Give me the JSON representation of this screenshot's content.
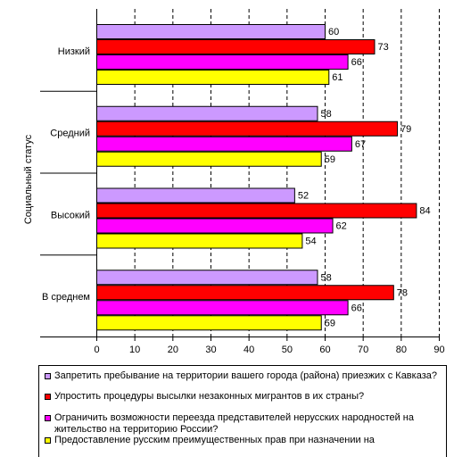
{
  "chart_data": {
    "type": "bar",
    "orientation": "horizontal",
    "ylabel": "Социальный статус",
    "categories": [
      "Низкий",
      "Средний",
      "Высокий",
      "В среднем"
    ],
    "xlim": [
      0,
      90
    ],
    "xticks": [
      0,
      10,
      20,
      30,
      40,
      50,
      60,
      70,
      80,
      90
    ],
    "grid": "vertical dashed",
    "legend_position": "bottom",
    "series": [
      {
        "name": "Запретить пребывание на территории вашего города (района) приезжих с Кавказа?",
        "color": "#CC99FF",
        "values": [
          60,
          58,
          52,
          58
        ]
      },
      {
        "name": "Упростить процедуры высылки незаконных мигрантов  в их страны?",
        "color": "#FF0000",
        "values": [
          73,
          79,
          84,
          78
        ]
      },
      {
        "name": "Ограничить возможности переезда представителей нерусских народностей на жительство на территорию России?",
        "color": "#FF00FF",
        "values": [
          66,
          67,
          62,
          66
        ]
      },
      {
        "name": "Предоставление русским преимущественных прав при назначении на",
        "color": "#FFFF00",
        "values": [
          61,
          59,
          54,
          59
        ]
      }
    ]
  }
}
